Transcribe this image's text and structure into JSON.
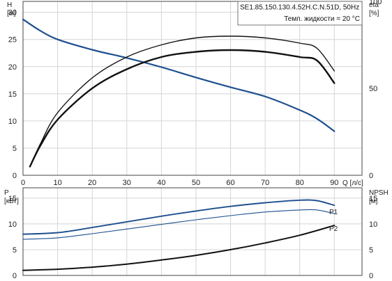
{
  "chart_data": [
    {
      "type": "line",
      "title": "",
      "info_box": {
        "line1": "SE1.85.150.130.4.52H.C.N.51D, 50Hz",
        "line2": "Темп. жидкости = 20 °C"
      },
      "y_left": {
        "label": "H",
        "unit": "[м]",
        "range": [
          0,
          32
        ],
        "ticks": [
          0,
          5,
          10,
          15,
          20,
          25,
          30
        ]
      },
      "y_right": {
        "label": "eta",
        "unit": "[%]",
        "range": [
          0,
          100
        ],
        "ticks": [
          0,
          50,
          100
        ]
      },
      "x": {
        "label": "Q [л/с]",
        "range": [
          0,
          98
        ],
        "ticks": [
          0,
          10,
          20,
          30,
          40,
          50,
          60,
          70,
          80,
          90
        ]
      },
      "grid": true,
      "colors": {
        "head": "#1d4f8f",
        "efficiency": "#111111"
      },
      "series": [
        {
          "axis": "left",
          "style": "head",
          "points": [
            [
              0,
              28.7
            ],
            [
              5,
              26.6
            ],
            [
              10,
              25.0
            ],
            [
              20,
              23.1
            ],
            [
              30,
              21.6
            ],
            [
              40,
              19.9
            ],
            [
              50,
              18.0
            ],
            [
              60,
              16.2
            ],
            [
              70,
              14.5
            ],
            [
              80,
              12.0
            ],
            [
              85,
              10.4
            ],
            [
              90,
              8.1
            ]
          ]
        },
        {
          "axis": "right",
          "style": "eta-thin",
          "points": [
            [
              2,
              5
            ],
            [
              5,
              18
            ],
            [
              10,
              36
            ],
            [
              20,
              56
            ],
            [
              30,
              68
            ],
            [
              40,
              75
            ],
            [
              50,
              79
            ],
            [
              60,
              80
            ],
            [
              70,
              79
            ],
            [
              80,
              76
            ],
            [
              85,
              73
            ],
            [
              90,
              60
            ]
          ]
        },
        {
          "axis": "right",
          "style": "eta-thick",
          "points": [
            [
              2,
              5
            ],
            [
              5,
              17
            ],
            [
              10,
              32
            ],
            [
              20,
              50
            ],
            [
              30,
              61
            ],
            [
              40,
              68
            ],
            [
              50,
              71
            ],
            [
              60,
              72
            ],
            [
              70,
              71
            ],
            [
              80,
              68
            ],
            [
              85,
              66
            ],
            [
              90,
              53
            ]
          ]
        }
      ]
    },
    {
      "type": "line",
      "title": "",
      "y_left": {
        "label": "P",
        "unit": "[кВт]",
        "range": [
          0,
          17
        ],
        "ticks": [
          0,
          5,
          10,
          15
        ]
      },
      "y_right": {
        "label": "NPSH",
        "unit": "[м]",
        "range": [
          0,
          17
        ],
        "ticks": [
          0,
          5,
          10,
          15
        ]
      },
      "x": {
        "label": "",
        "range": [
          0,
          98
        ],
        "ticks": []
      },
      "grid": true,
      "colors": {
        "p1": "#1d4f8f",
        "p2": "#1d4f8f",
        "npsh": "#111111"
      },
      "series": [
        {
          "name": "P1",
          "axis": "left",
          "style": "p1",
          "points": [
            [
              0,
              8.0
            ],
            [
              10,
              8.3
            ],
            [
              20,
              9.3
            ],
            [
              30,
              10.4
            ],
            [
              40,
              11.5
            ],
            [
              50,
              12.5
            ],
            [
              60,
              13.4
            ],
            [
              70,
              14.1
            ],
            [
              80,
              14.6
            ],
            [
              85,
              14.5
            ],
            [
              90,
              13.6
            ]
          ]
        },
        {
          "name": "P2",
          "axis": "left",
          "style": "p2",
          "points": [
            [
              0,
              7.0
            ],
            [
              10,
              7.3
            ],
            [
              20,
              8.1
            ],
            [
              30,
              9.0
            ],
            [
              40,
              9.9
            ],
            [
              50,
              10.8
            ],
            [
              60,
              11.6
            ],
            [
              70,
              12.3
            ],
            [
              80,
              12.7
            ],
            [
              85,
              12.7
            ],
            [
              90,
              12.0
            ]
          ]
        },
        {
          "axis": "right",
          "style": "npsh",
          "points": [
            [
              0,
              1.0
            ],
            [
              10,
              1.2
            ],
            [
              20,
              1.6
            ],
            [
              30,
              2.2
            ],
            [
              40,
              3.0
            ],
            [
              50,
              3.9
            ],
            [
              60,
              5.0
            ],
            [
              70,
              6.3
            ],
            [
              80,
              7.8
            ],
            [
              90,
              9.7
            ]
          ]
        }
      ]
    }
  ]
}
